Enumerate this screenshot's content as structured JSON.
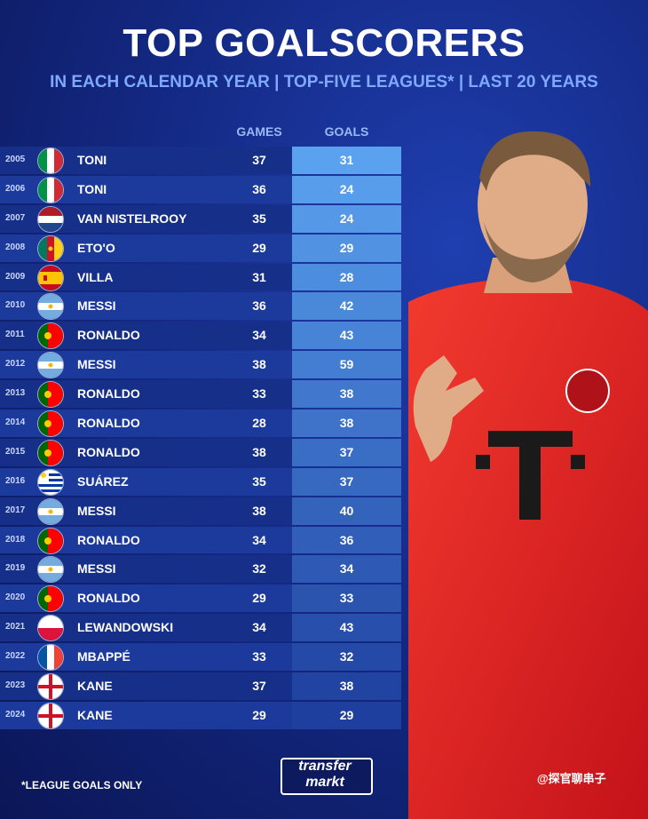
{
  "header": {
    "title": "TOP GOALSCORERS",
    "subtitle": "IN EACH CALENDAR YEAR | TOP-FIVE LEAGUES* | LAST 20 YEARS"
  },
  "columns": {
    "games": "GAMES",
    "goals": "GOALS"
  },
  "chart_data": {
    "type": "table",
    "title": "TOP GOALSCORERS",
    "subtitle": "IN EACH CALENDAR YEAR | TOP-FIVE LEAGUES* | LAST 20 YEARS",
    "columns": [
      "GAMES",
      "GOALS"
    ],
    "rows": [
      {
        "year": "2005",
        "flag": "italy-flag",
        "name": "TONI",
        "games": 37,
        "goals": 31
      },
      {
        "year": "2006",
        "flag": "italy-flag",
        "name": "TONI",
        "games": 36,
        "goals": 24
      },
      {
        "year": "2007",
        "flag": "netherlands-flag",
        "name": "VAN NISTELROOY",
        "games": 35,
        "goals": 24
      },
      {
        "year": "2008",
        "flag": "cameroon-flag",
        "name": "ETO'O",
        "games": 29,
        "goals": 29
      },
      {
        "year": "2009",
        "flag": "spain-flag",
        "name": "VILLA",
        "games": 31,
        "goals": 28
      },
      {
        "year": "2010",
        "flag": "argentina-flag",
        "name": "MESSI",
        "games": 36,
        "goals": 42
      },
      {
        "year": "2011",
        "flag": "portugal-flag",
        "name": "RONALDO",
        "games": 34,
        "goals": 43
      },
      {
        "year": "2012",
        "flag": "argentina-flag",
        "name": "MESSI",
        "games": 38,
        "goals": 59
      },
      {
        "year": "2013",
        "flag": "portugal-flag",
        "name": "RONALDO",
        "games": 33,
        "goals": 38
      },
      {
        "year": "2014",
        "flag": "portugal-flag",
        "name": "RONALDO",
        "games": 28,
        "goals": 38
      },
      {
        "year": "2015",
        "flag": "portugal-flag",
        "name": "RONALDO",
        "games": 38,
        "goals": 37
      },
      {
        "year": "2016",
        "flag": "uruguay-flag",
        "name": "SUÁREZ",
        "games": 35,
        "goals": 37
      },
      {
        "year": "2017",
        "flag": "argentina-flag",
        "name": "MESSI",
        "games": 38,
        "goals": 40
      },
      {
        "year": "2018",
        "flag": "portugal-flag",
        "name": "RONALDO",
        "games": 34,
        "goals": 36
      },
      {
        "year": "2019",
        "flag": "argentina-flag",
        "name": "MESSI",
        "games": 32,
        "goals": 34
      },
      {
        "year": "2020",
        "flag": "portugal-flag",
        "name": "RONALDO",
        "games": 29,
        "goals": 33
      },
      {
        "year": "2021",
        "flag": "poland-flag",
        "name": "LEWANDOWSKI",
        "games": 34,
        "goals": 43
      },
      {
        "year": "2022",
        "flag": "france-flag",
        "name": "MBAPPÉ",
        "games": 33,
        "goals": 32
      },
      {
        "year": "2023",
        "flag": "england-flag",
        "name": "KANE",
        "games": 37,
        "goals": 38
      },
      {
        "year": "2024",
        "flag": "england-flag",
        "name": "KANE",
        "games": 29,
        "goals": 29
      }
    ]
  },
  "footer": {
    "footnote": "*LEAGUE GOALS ONLY",
    "logo_line1": "transfer",
    "logo_line2": "markt",
    "watermark": "@探官聊串子"
  },
  "colors": {
    "goals_col_top": "#5aa2f0",
    "goals_col_bottom": "#1e3f9e",
    "shirt": "#e0201f",
    "accent_text": "#7fa8ff"
  }
}
